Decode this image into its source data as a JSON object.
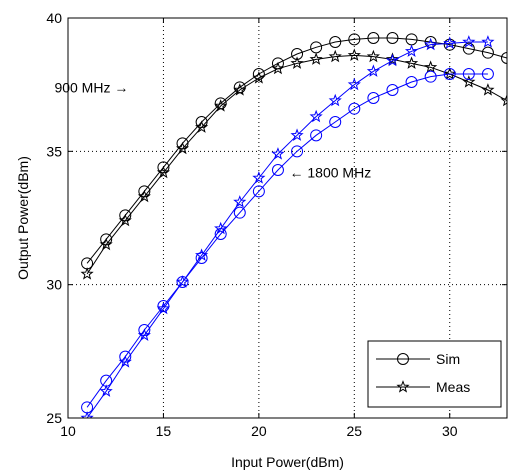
{
  "chart_data": {
    "type": "line",
    "title": "",
    "xlabel": "Input Power(dBm)",
    "ylabel": "Output Power(dBm)",
    "xlim": [
      10,
      33
    ],
    "ylim": [
      25,
      40
    ],
    "xticks": [
      10,
      15,
      20,
      25,
      30
    ],
    "yticks": [
      25,
      30,
      35,
      40
    ],
    "grid": true,
    "legend_position": "bottom-right",
    "legend": [
      {
        "label": "Sim",
        "marker": "circle"
      },
      {
        "label": "Meas",
        "marker": "star"
      }
    ],
    "annotations": [
      {
        "text": "900 MHz →",
        "x": 13.9,
        "y": 37.4
      },
      {
        "text": "← 1800 MHz",
        "x": 21.5,
        "y": 34.2
      }
    ],
    "colors": {
      "900": "#000000",
      "1800": "#0000ff"
    },
    "series": [
      {
        "band": "900 MHz",
        "kind": "Sim",
        "marker": "circle",
        "color": "#000000",
        "x": [
          11,
          12,
          13,
          14,
          15,
          16,
          17,
          18,
          19,
          20,
          21,
          22,
          23,
          24,
          25,
          26,
          27,
          28,
          29,
          30,
          31,
          32,
          33
        ],
        "y": [
          30.8,
          31.7,
          32.6,
          33.5,
          34.4,
          35.3,
          36.1,
          36.8,
          37.4,
          37.9,
          38.3,
          38.65,
          38.9,
          39.1,
          39.2,
          39.25,
          39.25,
          39.2,
          39.1,
          39.0,
          38.85,
          38.7,
          38.5
        ]
      },
      {
        "band": "900 MHz",
        "kind": "Meas",
        "marker": "star",
        "color": "#000000",
        "x": [
          11,
          12,
          13,
          14,
          15,
          16,
          17,
          18,
          19,
          20,
          21,
          22,
          23,
          24,
          25,
          26,
          27,
          28,
          29,
          30,
          31,
          32,
          33
        ],
        "y": [
          30.4,
          31.5,
          32.4,
          33.3,
          34.2,
          35.1,
          35.9,
          36.7,
          37.3,
          37.75,
          38.1,
          38.3,
          38.45,
          38.55,
          38.6,
          38.55,
          38.45,
          38.3,
          38.15,
          37.9,
          37.6,
          37.3,
          36.9
        ]
      },
      {
        "band": "1800 MHz",
        "kind": "Sim",
        "marker": "circle",
        "color": "#0000ff",
        "x": [
          11,
          12,
          13,
          14,
          15,
          16,
          17,
          18,
          19,
          20,
          21,
          22,
          23,
          24,
          25,
          26,
          27,
          28,
          29,
          30,
          31,
          32
        ],
        "y": [
          25.4,
          26.4,
          27.3,
          28.3,
          29.2,
          30.1,
          31.0,
          31.9,
          32.7,
          33.5,
          34.3,
          35.0,
          35.6,
          36.1,
          36.6,
          37.0,
          37.3,
          37.6,
          37.8,
          37.9,
          37.9,
          37.9
        ]
      },
      {
        "band": "1800 MHz",
        "kind": "Meas",
        "marker": "star",
        "color": "#0000ff",
        "x": [
          11,
          12,
          13,
          14,
          15,
          16,
          17,
          18,
          19,
          20,
          21,
          22,
          23,
          24,
          25,
          26,
          27,
          28,
          29,
          30,
          31,
          32
        ],
        "y": [
          25.0,
          26.0,
          27.1,
          28.1,
          29.1,
          30.1,
          31.1,
          32.1,
          33.1,
          34.0,
          34.9,
          35.6,
          36.3,
          36.9,
          37.5,
          38.0,
          38.4,
          38.75,
          39.0,
          39.05,
          39.1,
          39.1
        ]
      }
    ]
  }
}
